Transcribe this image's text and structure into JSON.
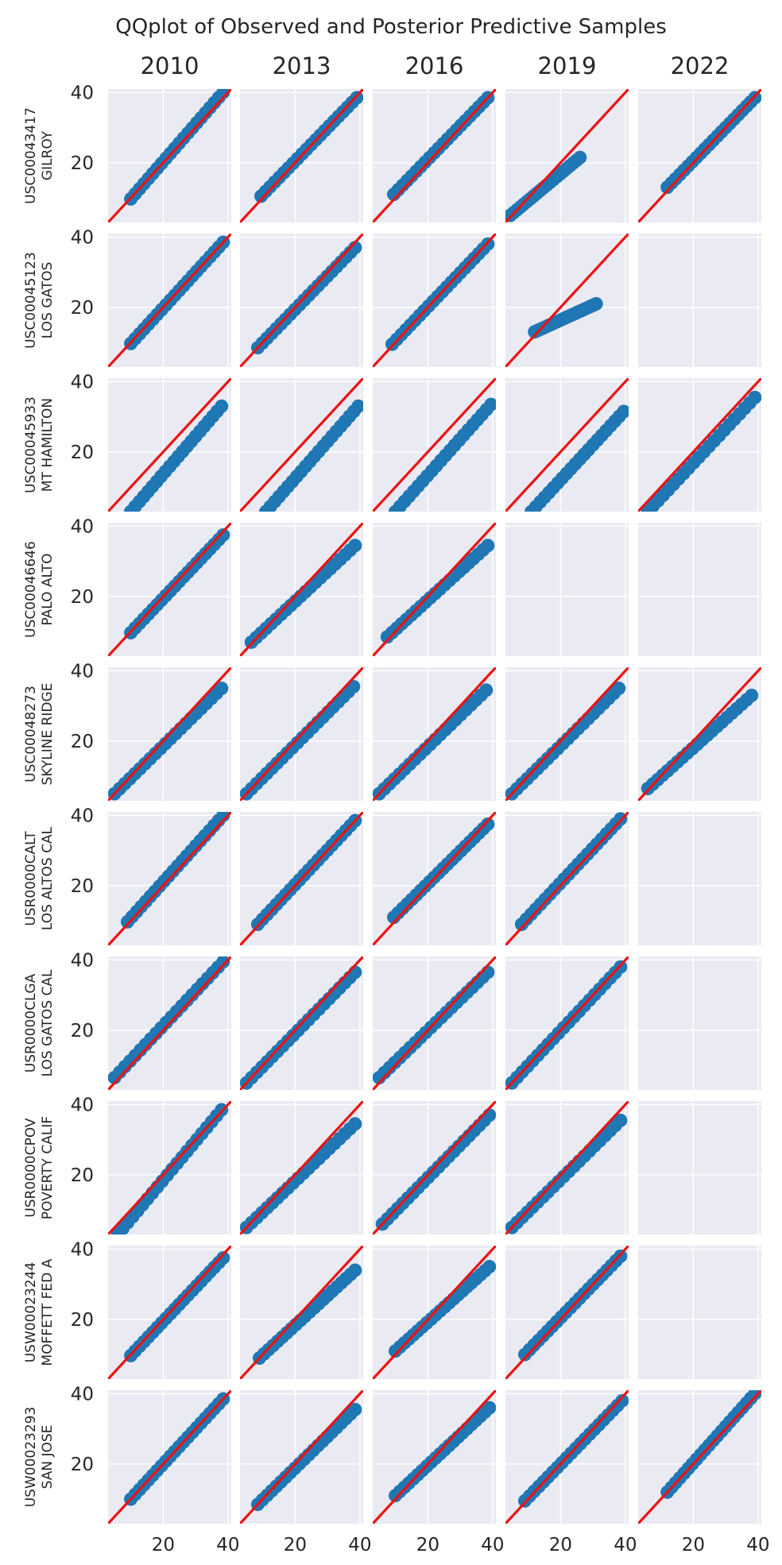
{
  "chart_data": {
    "type": "scatter",
    "title": "QQplot of Observed and Posterior Predictive Samples",
    "columns": [
      "2010",
      "2013",
      "2016",
      "2019",
      "2022"
    ],
    "rows": [
      {
        "station": "USC00043417",
        "name": "GILROY"
      },
      {
        "station": "USC00045123",
        "name": "LOS GATOS"
      },
      {
        "station": "USC00045933",
        "name": "MT HAMILTON"
      },
      {
        "station": "USC00046646",
        "name": "PALO ALTO"
      },
      {
        "station": "USC00048273",
        "name": "SKYLINE RIDGE"
      },
      {
        "station": "USR0000CALT",
        "name": "LOS ALTOS CAL"
      },
      {
        "station": "USR0000CLGA",
        "name": "LOS GATOS CAL"
      },
      {
        "station": "USR0000CPOV",
        "name": "POVERTY CALIF"
      },
      {
        "station": "USW00023244",
        "name": "MOFFETT FED A"
      },
      {
        "station": "USW00023293",
        "name": "SAN JOSE"
      }
    ],
    "axis_range": [
      3,
      41
    ],
    "x_ticks": [
      20,
      40
    ],
    "y_ticks": [
      20,
      40
    ],
    "x_tick_labels": [
      "20",
      "40"
    ],
    "y_tick_labels": [
      "20",
      "40"
    ],
    "grid": true,
    "reference_line": "y = x",
    "colors": {
      "points": "#1f77b4",
      "reference_line": "#ee1111",
      "panel_bg": "#eaeaf2",
      "grid": "#ffffff"
    },
    "panels": [
      [
        {
          "x": [
            10,
            38.5
          ],
          "y": [
            9.7,
            40
          ]
        },
        {
          "x": [
            9.5,
            39
          ],
          "y": [
            10.5,
            38.5
          ]
        },
        {
          "x": [
            9.5,
            38.5
          ],
          "y": [
            11,
            38.5
          ]
        },
        {
          "x": [
            4.5,
            26
          ],
          "y": [
            5,
            21.5
          ]
        },
        {
          "x": [
            12,
            39
          ],
          "y": [
            13,
            38.5
          ]
        }
      ],
      [
        {
          "x": [
            10,
            38.5
          ],
          "y": [
            9.7,
            38.5
          ]
        },
        {
          "x": [
            8.5,
            38.5
          ],
          "y": [
            8.5,
            37
          ]
        },
        {
          "x": [
            9,
            38.5
          ],
          "y": [
            9.5,
            38
          ]
        },
        {
          "x": [
            12,
            31
          ],
          "y": [
            13,
            21
          ]
        },
        null
      ],
      [
        {
          "x": [
            10,
            38
          ],
          "y": [
            3,
            33
          ]
        },
        {
          "x": [
            11,
            39.5
          ],
          "y": [
            3,
            33
          ]
        },
        {
          "x": [
            10,
            39.5
          ],
          "y": [
            3,
            33.5
          ]
        },
        {
          "x": [
            11,
            39.5
          ],
          "y": [
            3,
            31.5
          ]
        },
        {
          "x": [
            6,
            39
          ],
          "y": [
            3,
            35.5
          ]
        }
      ],
      [
        {
          "x": [
            10,
            38.5
          ],
          "y": [
            9.7,
            37.5
          ]
        },
        {
          "x": [
            6.5,
            38.5
          ],
          "y": [
            7,
            34.5
          ]
        },
        {
          "x": [
            7.5,
            38.5
          ],
          "y": [
            8.5,
            34.5
          ]
        },
        null,
        null
      ],
      [
        {
          "x": [
            5,
            38
          ],
          "y": [
            5,
            35
          ]
        },
        {
          "x": [
            5,
            38
          ],
          "y": [
            5,
            35.5
          ]
        },
        {
          "x": [
            5,
            38
          ],
          "y": [
            5,
            34.5
          ]
        },
        {
          "x": [
            5,
            38
          ],
          "y": [
            5,
            35
          ]
        },
        {
          "x": [
            6,
            38
          ],
          "y": [
            6.5,
            33
          ]
        }
      ],
      [
        {
          "x": [
            9,
            38.5
          ],
          "y": [
            9.7,
            40
          ]
        },
        {
          "x": [
            8.5,
            38.5
          ],
          "y": [
            9,
            38.5
          ]
        },
        {
          "x": [
            9.5,
            38.5
          ],
          "y": [
            11,
            37.5
          ]
        },
        {
          "x": [
            8,
            38.5
          ],
          "y": [
            9,
            39
          ]
        },
        null
      ],
      [
        {
          "x": [
            5,
            38.5
          ],
          "y": [
            6.5,
            39.5
          ]
        },
        {
          "x": [
            5,
            38.5
          ],
          "y": [
            5,
            36.5
          ]
        },
        {
          "x": [
            5,
            38.5
          ],
          "y": [
            6.5,
            36.5
          ]
        },
        {
          "x": [
            5,
            38.5
          ],
          "y": [
            5,
            38
          ]
        },
        null
      ],
      [
        {
          "x": [
            6,
            38
          ],
          "y": [
            3,
            38.5
          ]
        },
        {
          "x": [
            5,
            38.5
          ],
          "y": [
            5,
            34.5
          ]
        },
        {
          "x": [
            6,
            39
          ],
          "y": [
            6,
            37
          ]
        },
        {
          "x": [
            5,
            38.5
          ],
          "y": [
            5,
            35.5
          ]
        },
        null
      ],
      [
        {
          "x": [
            10,
            38.5
          ],
          "y": [
            9.7,
            37.5
          ]
        },
        {
          "x": [
            9,
            38.5
          ],
          "y": [
            9,
            34
          ]
        },
        {
          "x": [
            10,
            39
          ],
          "y": [
            11,
            35
          ]
        },
        {
          "x": [
            9,
            38.5
          ],
          "y": [
            10,
            38
          ]
        },
        null
      ],
      [
        {
          "x": [
            10,
            38.5
          ],
          "y": [
            10,
            38.5
          ]
        },
        {
          "x": [
            8.5,
            38.5
          ],
          "y": [
            8.5,
            35.5
          ]
        },
        {
          "x": [
            10,
            39
          ],
          "y": [
            11,
            36
          ]
        },
        {
          "x": [
            9,
            39
          ],
          "y": [
            9.5,
            38
          ]
        },
        {
          "x": [
            12,
            39
          ],
          "y": [
            12,
            40
          ]
        }
      ]
    ]
  }
}
